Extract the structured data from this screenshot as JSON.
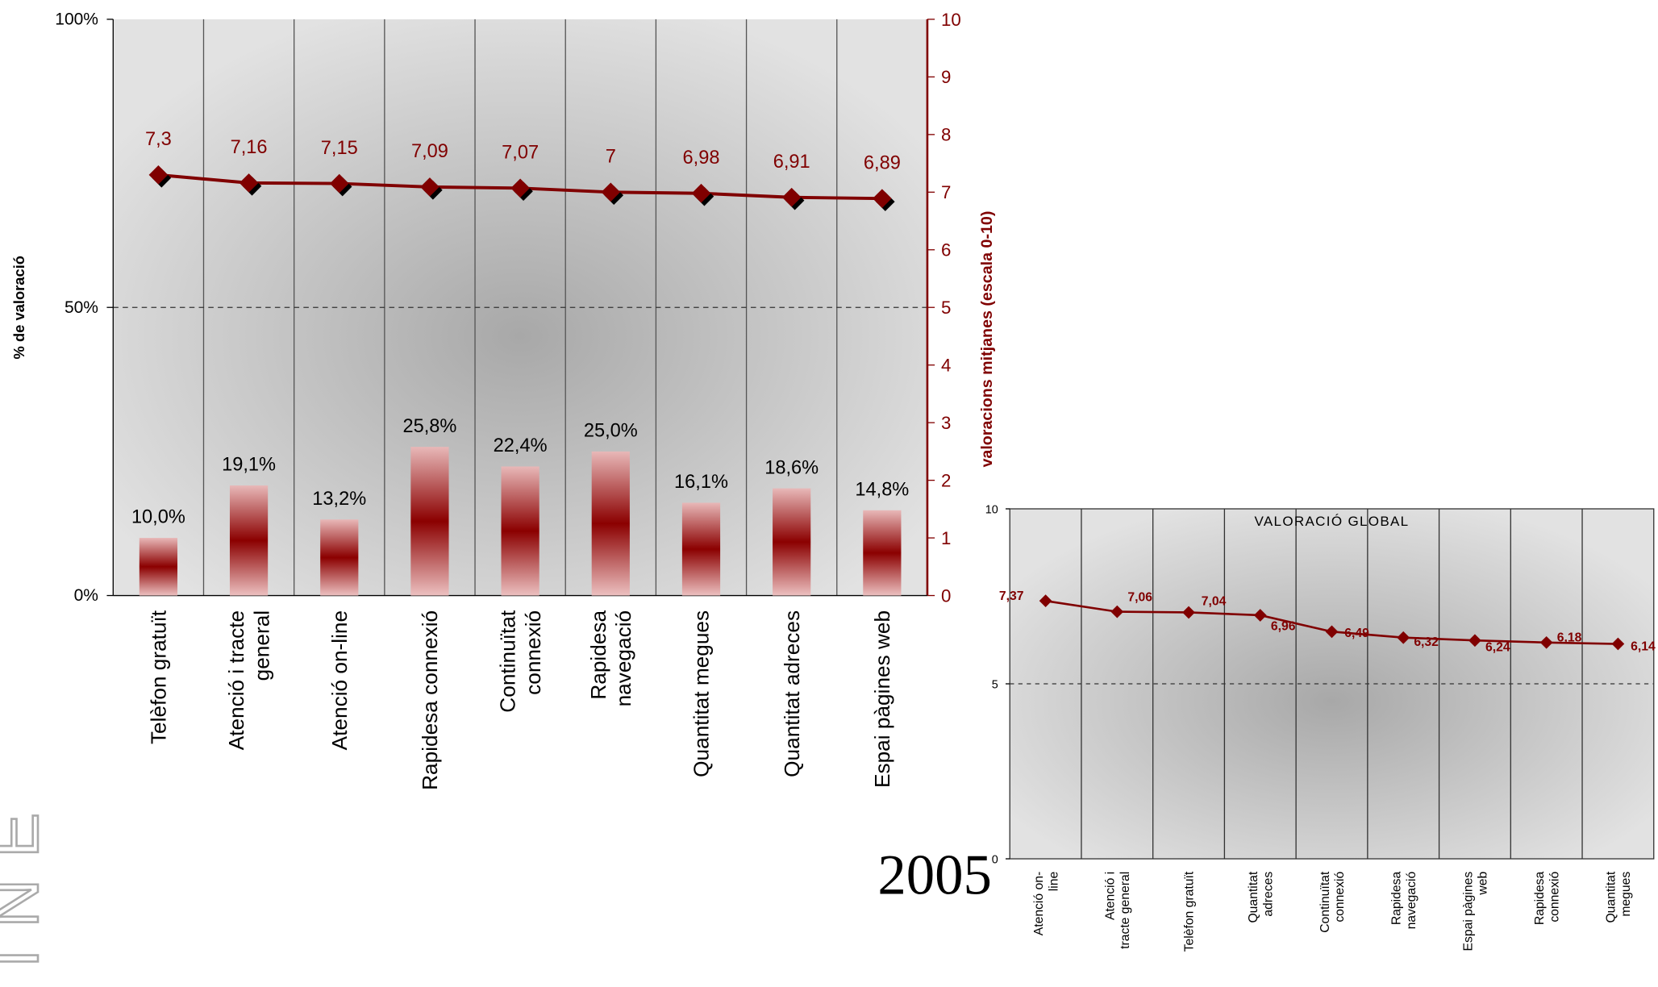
{
  "side_text": "INE",
  "year_label": "2005",
  "chart_data": [
    {
      "type": "bar",
      "ylabel": "% de valoració",
      "y2label": "valoracions mitjanes (escala 0-10)",
      "categories": [
        "Telèfon gratuït",
        "Atenció i tracte\ngeneral",
        "Atenció on-line",
        "Rapidesa connexió",
        "Continuïtat\nconnexió",
        "Rapidesa\nnavegació",
        "Quantitat megues",
        "Quantitat adreces",
        "Espai pàgines web"
      ],
      "series": [
        {
          "type": "bar",
          "color": "#8b0000",
          "values": [
            10.0,
            19.1,
            13.2,
            25.8,
            22.4,
            25.0,
            16.1,
            18.6,
            14.8
          ],
          "value_labels": [
            "10,0%",
            "19,1%",
            "13,2%",
            "25,8%",
            "22,4%",
            "25,0%",
            "16,1%",
            "18,6%",
            "14,8%"
          ]
        },
        {
          "type": "line",
          "axis": "y2",
          "color": "#800000",
          "values": [
            7.3,
            7.16,
            7.15,
            7.09,
            7.07,
            7,
            6.98,
            6.91,
            6.89
          ],
          "value_labels": [
            "7,3",
            "7,16",
            "7,15",
            "7,09",
            "7,07",
            "7",
            "6,98",
            "6,91",
            "6,89"
          ]
        }
      ],
      "ylim": [
        0,
        100
      ],
      "yticks": [
        {
          "value": 0,
          "label": "0%"
        },
        {
          "value": 50,
          "label": "50%"
        },
        {
          "value": 100,
          "label": "100%"
        }
      ],
      "y2lim": [
        0,
        10
      ],
      "y2ticks": [
        0,
        1,
        2,
        3,
        4,
        5,
        6,
        7,
        8,
        9,
        10
      ]
    },
    {
      "type": "line",
      "title": "VALORACIÓ GLOBAL",
      "categories": [
        "Atenció on-\nline",
        "Atenció i\ntracte general",
        "Telèfon gratuït",
        "Quantitat\nadreces",
        "Continuïtat\nconnexió",
        "Rapidesa\nnavegació",
        "Espai pàgines\nweb",
        "Rapidesa\nconnexió",
        "Quantitat\nmegues"
      ],
      "series": [
        {
          "color": "#800000",
          "values": [
            7.37,
            7.06,
            7.04,
            6.96,
            6.49,
            6.32,
            6.24,
            6.18,
            6.14
          ],
          "value_labels": [
            "7,37",
            "7,06",
            "7,04",
            "6,96",
            "6,49",
            "6,32",
            "6,24",
            "6,18",
            "6,14"
          ]
        }
      ],
      "ylim": [
        0,
        10
      ],
      "yticks": [
        0,
        5,
        10
      ]
    }
  ]
}
